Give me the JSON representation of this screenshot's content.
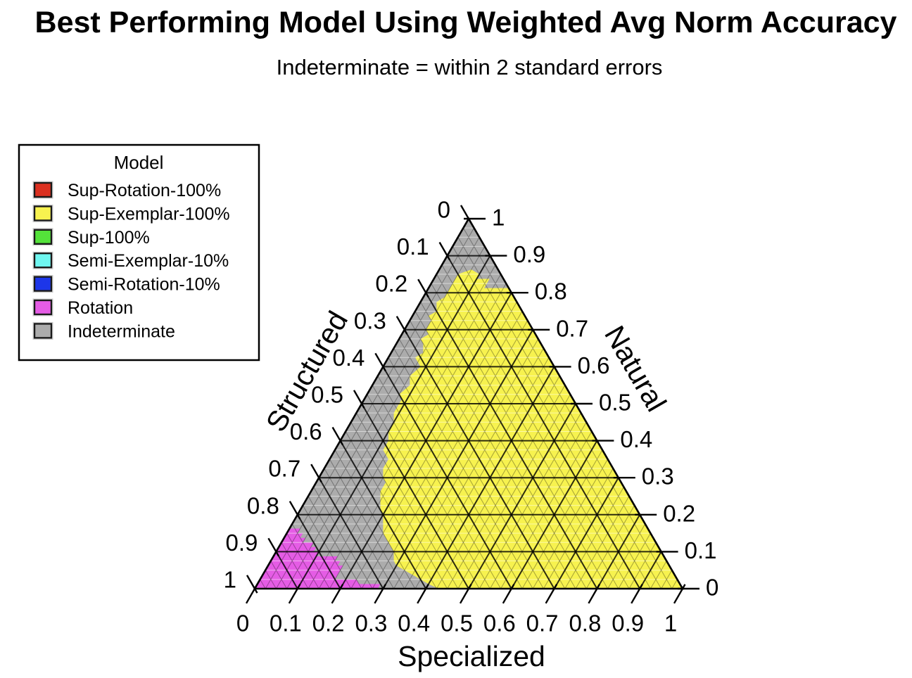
{
  "title": "Best Performing Model Using Weighted Avg Norm Accuracy",
  "subtitle": "Indeterminate = within 2 standard errors",
  "legend": {
    "title": "Model",
    "items": [
      {
        "label": "Sup-Rotation-100%",
        "color": "#DB3020"
      },
      {
        "label": "Sup-Exemplar-100%",
        "color": "#F7F24F"
      },
      {
        "label": "Sup-100%",
        "color": "#54E23A"
      },
      {
        "label": "Semi-Exemplar-10%",
        "color": "#6FF6F0"
      },
      {
        "label": "Semi-Rotation-10%",
        "color": "#1D36E9"
      },
      {
        "label": "Rotation",
        "color": "#E55CE5"
      },
      {
        "label": "Indeterminate",
        "color": "#ACACAC"
      }
    ]
  },
  "chart_data": {
    "type": "ternary-region-map",
    "title": "Best Performing Model Using Weighted Avg Norm Accuracy",
    "subtitle": "Indeterminate = within 2 standard errors",
    "axes": {
      "left": "Structured",
      "right": "Natural",
      "bottom": "Specialized"
    },
    "axis_range": [
      0,
      1
    ],
    "tick_labels": [
      "0",
      "0.1",
      "0.2",
      "0.3",
      "0.4",
      "0.5",
      "0.6",
      "0.7",
      "0.8",
      "0.9",
      "1"
    ],
    "major_step": 0.1,
    "minor_step": 0.025,
    "grid": true,
    "legend_position": "upper-left",
    "regions_coordinate_format": "[specialized, natural] with structured = 1 - specialized - natural",
    "regions": [
      {
        "model": "Indeterminate",
        "polygon": [
          [
            0,
            0
          ],
          [
            1,
            0
          ],
          [
            0,
            1
          ]
        ]
      },
      {
        "model": "Sup-Exemplar-100%",
        "polygon": [
          [
            0.075,
            0.8625
          ],
          [
            0.1,
            0.85
          ],
          [
            0.1,
            0.8375
          ],
          [
            0.13,
            0.8375
          ],
          [
            0.13,
            0.8125
          ],
          [
            0.1875,
            0.8125
          ],
          [
            0.2,
            0.8
          ],
          [
            1,
            0
          ],
          [
            0.43,
            0
          ],
          [
            0.4,
            0.0125
          ],
          [
            0.35,
            0.0375
          ],
          [
            0.325,
            0.05
          ],
          [
            0.3,
            0.0625
          ],
          [
            0.2875,
            0.075
          ],
          [
            0.275,
            0.1
          ],
          [
            0.25,
            0.125
          ],
          [
            0.2375,
            0.1375
          ],
          [
            0.225,
            0.15
          ],
          [
            0.2125,
            0.175
          ],
          [
            0.2,
            0.2
          ],
          [
            0.1875,
            0.2125
          ],
          [
            0.175,
            0.2375
          ],
          [
            0.1625,
            0.2625
          ],
          [
            0.1625,
            0.2875
          ],
          [
            0.15,
            0.3
          ],
          [
            0.1375,
            0.325
          ],
          [
            0.1375,
            0.35
          ],
          [
            0.125,
            0.3625
          ],
          [
            0.1125,
            0.375
          ],
          [
            0.1125,
            0.4
          ],
          [
            0.1,
            0.425
          ],
          [
            0.1,
            0.45
          ],
          [
            0.0875,
            0.475
          ],
          [
            0.0875,
            0.5125
          ],
          [
            0.075,
            0.525
          ],
          [
            0.0875,
            0.55
          ],
          [
            0.075,
            0.575
          ],
          [
            0.0875,
            0.6
          ],
          [
            0.075,
            0.6125
          ],
          [
            0.0625,
            0.625
          ],
          [
            0.075,
            0.6375
          ],
          [
            0.0625,
            0.6625
          ],
          [
            0.05,
            0.675
          ],
          [
            0.0625,
            0.6875
          ],
          [
            0.05,
            0.7
          ],
          [
            0.05,
            0.725
          ],
          [
            0.0375,
            0.7375
          ],
          [
            0.05,
            0.75
          ],
          [
            0.0375,
            0.775
          ],
          [
            0.05,
            0.7875
          ],
          [
            0.05,
            0.85
          ]
        ]
      },
      {
        "model": "Rotation",
        "polygon": [
          [
            0,
            0.1625
          ],
          [
            0.025,
            0.1625
          ],
          [
            0.025,
            0.15
          ],
          [
            0.0375,
            0.15
          ],
          [
            0.0375,
            0.1375
          ],
          [
            0.05,
            0.1375
          ],
          [
            0.05,
            0.125
          ],
          [
            0.075,
            0.125
          ],
          [
            0.075,
            0.1125
          ],
          [
            0.0875,
            0.1125
          ],
          [
            0.0875,
            0.1
          ],
          [
            0.1,
            0.1
          ],
          [
            0.1,
            0.0875
          ],
          [
            0.15,
            0.0875
          ],
          [
            0.15,
            0.075
          ],
          [
            0.1625,
            0.075
          ],
          [
            0.1625,
            0.0625
          ],
          [
            0.175,
            0.0625
          ],
          [
            0.175,
            0.025
          ],
          [
            0.225,
            0.025
          ],
          [
            0.2375,
            0.0125
          ],
          [
            0.2875,
            0.0125
          ],
          [
            0.2875,
            0
          ],
          [
            0,
            0
          ]
        ]
      }
    ]
  }
}
